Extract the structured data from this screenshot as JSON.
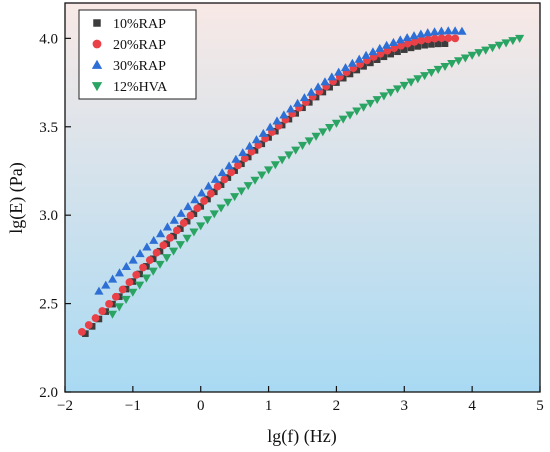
{
  "chart_data": {
    "type": "scatter",
    "xlabel": "lg(f) (Hz)",
    "ylabel": "lg(E) (Pa)",
    "xlim": [
      -2,
      5
    ],
    "ylim": [
      2.0,
      4.2
    ],
    "xticks": [
      -2,
      -1,
      0,
      1,
      2,
      3,
      4,
      5
    ],
    "yticks": [
      2.0,
      2.5,
      3.0,
      3.5,
      4.0
    ],
    "xtick_labels": [
      "−2",
      "−1",
      "0",
      "1",
      "2",
      "3",
      "4",
      "5"
    ],
    "ytick_labels": [
      "2.0",
      "2.5",
      "3.0",
      "3.5",
      "4.0"
    ],
    "grid": false,
    "legend_position": "top-left",
    "background": "vertical gradient from light pink at top to light blue at bottom",
    "series": [
      {
        "name": "10%RAP",
        "marker": "square",
        "color": "#3c3c3c",
        "x_start": -1.7,
        "x_end": 3.6,
        "count": 54,
        "y_start": 2.33,
        "y_end": 3.97,
        "y_mid": 3.05,
        "x_mid": 0.0,
        "y_mid2": 3.75,
        "x_mid2": 2.0
      },
      {
        "name": "20%RAP",
        "marker": "circle",
        "color": "#ea4047",
        "x_start": -1.75,
        "x_end": 3.75,
        "count": 56,
        "y_start": 2.34,
        "y_end": 4.0,
        "y_mid": 3.06,
        "x_mid": 0.0,
        "y_mid2": 3.77,
        "x_mid2": 2.0
      },
      {
        "name": "30%RAP",
        "marker": "triangle-up",
        "color": "#2e6fd6",
        "x_start": -1.5,
        "x_end": 3.85,
        "count": 54,
        "y_start": 2.57,
        "y_end": 4.04,
        "y_mid": 3.12,
        "x_mid": 0.0,
        "y_mid2": 3.8,
        "x_mid2": 2.0
      },
      {
        "name": "12%HVA",
        "marker": "triangle-down",
        "color": "#2aa463",
        "x_start": -1.3,
        "x_end": 4.7,
        "count": 61,
        "y_start": 2.44,
        "y_end": 4.0,
        "y_mid": 2.94,
        "x_mid": 0.0,
        "y_mid2": 3.52,
        "x_mid2": 2.0
      }
    ]
  }
}
